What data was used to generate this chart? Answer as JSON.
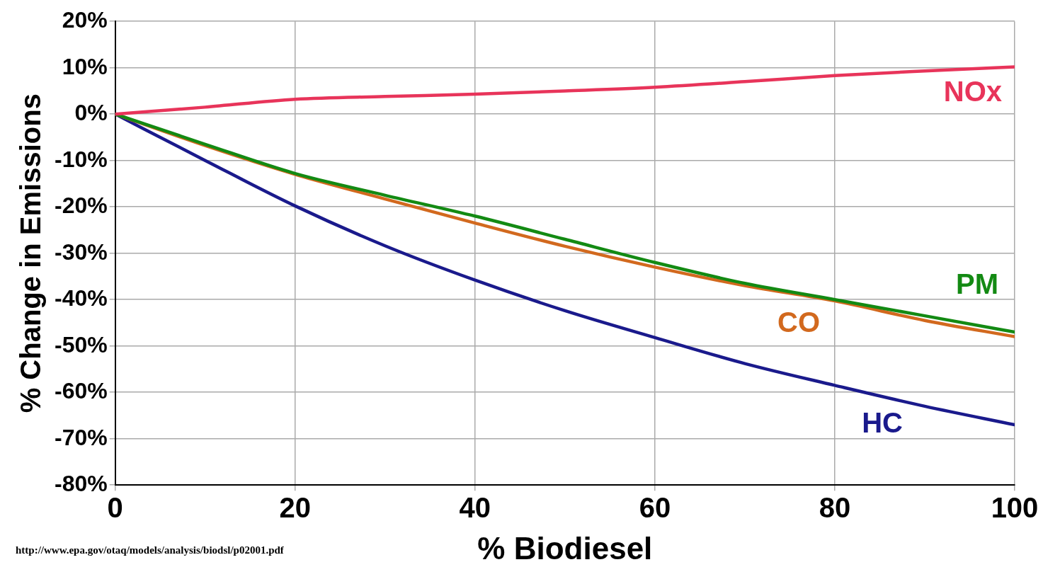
{
  "chart_data": {
    "type": "line",
    "xlabel": "% Biodiesel",
    "ylabel": "% Change in Emissions",
    "x": [
      0,
      10,
      20,
      30,
      40,
      50,
      60,
      70,
      80,
      90,
      100
    ],
    "series": [
      {
        "name": "NOx",
        "color": "#e8345a",
        "values": [
          0,
          1.5,
          3.2,
          3.8,
          4.3,
          5,
          5.8,
          7,
          8.3,
          9.3,
          10.2
        ]
      },
      {
        "name": "PM",
        "color": "#138a13",
        "values": [
          0,
          -6.5,
          -12.8,
          -17.5,
          -22,
          -27,
          -32,
          -36.5,
          -40,
          -43.5,
          -47
        ]
      },
      {
        "name": "CO",
        "color": "#d2691e",
        "values": [
          0,
          -6.8,
          -13,
          -18.3,
          -23.5,
          -28.5,
          -33,
          -37,
          -40.3,
          -44.5,
          -48
        ]
      },
      {
        "name": "HC",
        "color": "#1a1a8c",
        "values": [
          0,
          -10,
          -19.8,
          -28.4,
          -35.8,
          -42.4,
          -48.2,
          -53.8,
          -58.5,
          -63,
          -67
        ]
      }
    ],
    "xlim": [
      0,
      100
    ],
    "xticks": [
      0,
      20,
      40,
      60,
      80,
      100
    ],
    "ylim": [
      -80,
      20
    ],
    "yticks": [
      {
        "value": 20,
        "label": "20%"
      },
      {
        "value": 10,
        "label": "10%"
      },
      {
        "value": 0,
        "label": "0%"
      },
      {
        "value": -10,
        "label": "-10%"
      },
      {
        "value": -20,
        "label": "-20%"
      },
      {
        "value": -30,
        "label": "-30%"
      },
      {
        "value": -40,
        "label": "-40%"
      },
      {
        "value": -50,
        "label": "-50%"
      },
      {
        "value": -60,
        "label": "-60%"
      },
      {
        "value": -70,
        "label": "-70%"
      },
      {
        "value": -80,
        "label": "-80%"
      }
    ],
    "grid": true,
    "legend": false,
    "marker": "none",
    "line_style": "solid",
    "annotations": [
      "http://www.epa.gov/otaq/models/analysis/biodsl/p02001.pdf"
    ]
  }
}
